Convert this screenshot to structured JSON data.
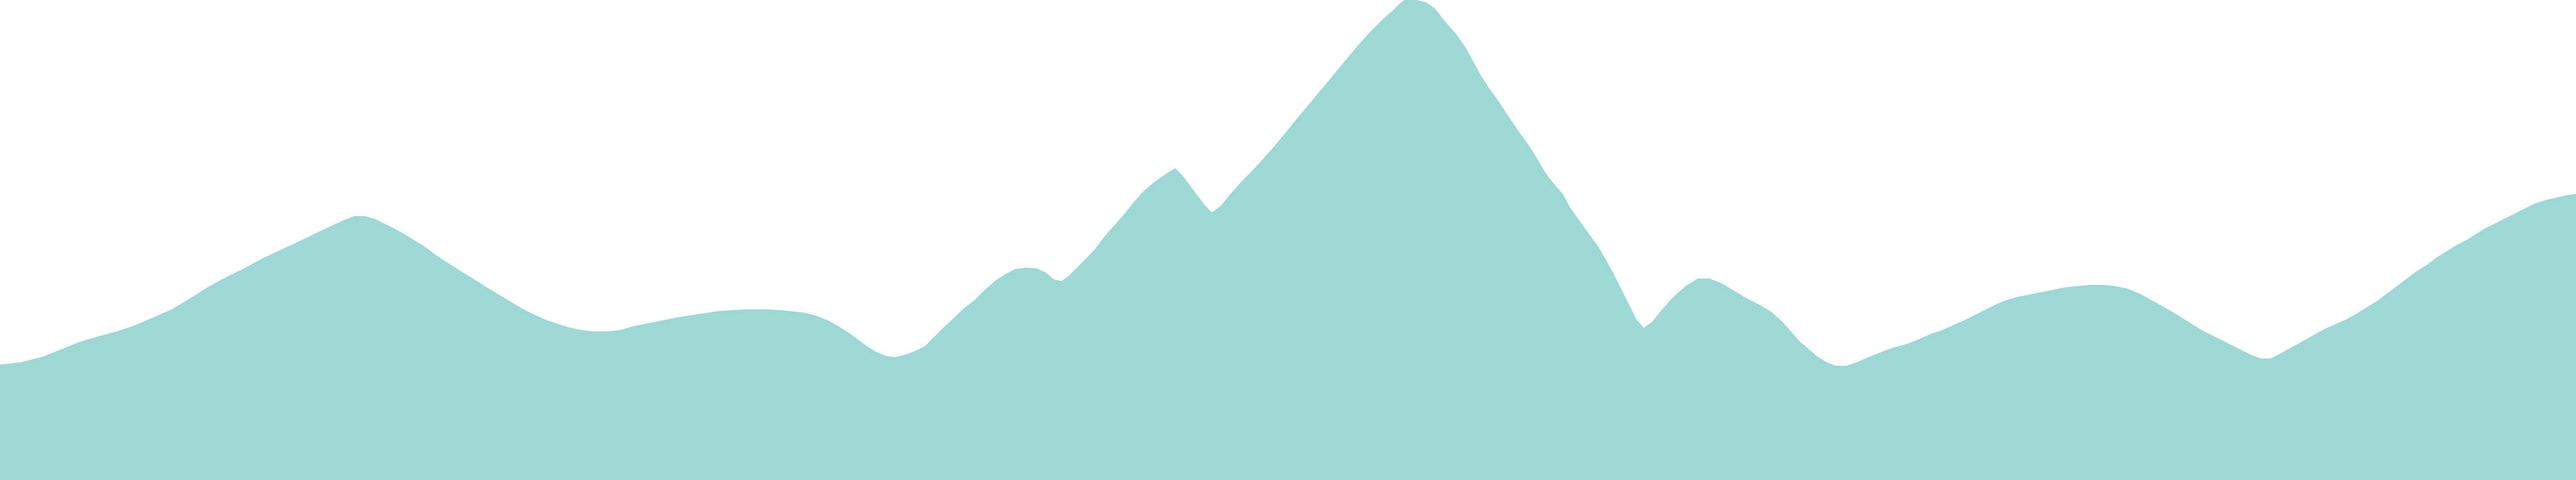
{
  "colors": {
    "background": "#ffffff",
    "mountain_fill": "#9dd9d4"
  },
  "shapes": {
    "main": "mountain-silhouette"
  }
}
